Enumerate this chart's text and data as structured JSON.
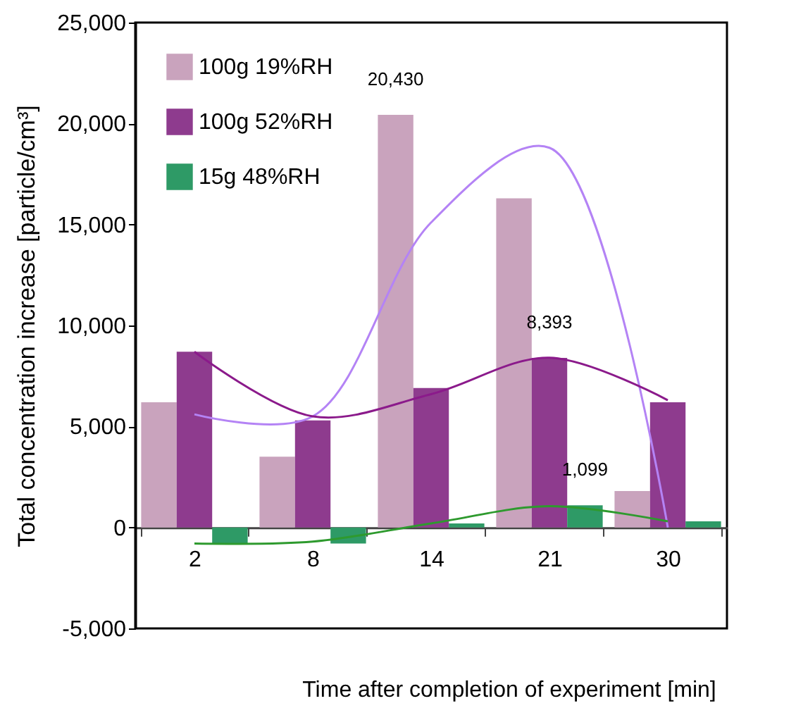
{
  "chart_data": {
    "type": "bar",
    "xlabel": "Time after completion of experiment [min]",
    "ylabel": "Total concentration increase  [particle/cm³]",
    "categories": [
      "2",
      "8",
      "14",
      "21",
      "30"
    ],
    "series": [
      {
        "name": "100g 19%RH",
        "color": "#c9a3bd",
        "values": [
          6200,
          3500,
          20430,
          16300,
          1800
        ],
        "value_labels": [
          null,
          null,
          "20,430",
          null,
          null
        ]
      },
      {
        "name": "100g 52%RH",
        "color": "#8e3b8e",
        "values": [
          8700,
          5300,
          6900,
          8393,
          6200
        ],
        "value_labels": [
          null,
          null,
          null,
          "8,393",
          null
        ]
      },
      {
        "name": "15g   48%RH",
        "color": "#2e9a66",
        "values": [
          -800,
          -800,
          200,
          1099,
          300
        ],
        "value_labels": [
          null,
          null,
          null,
          "1,099",
          null
        ]
      },
      {
        "type": "line",
        "color": "#b483f5",
        "values": [
          5600,
          5500,
          15100,
          18800,
          0
        ]
      },
      {
        "type": "line",
        "color": "#8b1a8b",
        "values": [
          8700,
          5500,
          6600,
          8400,
          6300
        ]
      },
      {
        "type": "line",
        "color": "#2e9a2e",
        "values": [
          -800,
          -700,
          200,
          1050,
          300
        ]
      }
    ],
    "ylim": [
      -5000,
      25000
    ],
    "yticks": [
      {
        "value": -5000,
        "label": "-5,000"
      },
      0,
      {
        "value": 5000,
        "label": "5,000"
      },
      {
        "value": 10000,
        "label": "10,000"
      },
      {
        "value": 15000,
        "label": "15,000"
      },
      {
        "value": 20000,
        "label": "20,000"
      },
      {
        "value": 25000,
        "label": "25,000"
      }
    ],
    "legend": "top left"
  }
}
